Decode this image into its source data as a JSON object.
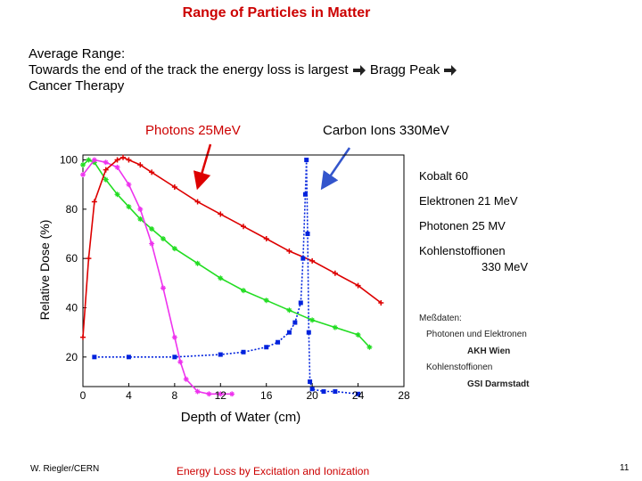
{
  "slide": {
    "title": "Range of Particles in Matter",
    "intro_line1": "Average Range:",
    "intro_line2a": "Towards the end of the track the energy loss is largest ",
    "intro_line2b": " Bragg Peak ",
    "intro_line3": "Cancer Therapy",
    "label_photons": "Photons 25MeV",
    "label_carbon": "Carbon Ions 330MeV",
    "footer_author": "W. Riegler/CERN",
    "footer_topic": "Energy Loss by Excitation and Ionization",
    "page_number": "11",
    "accent_color": "#cc0000"
  },
  "chart_data": {
    "type": "line",
    "ylabel": "Relative Dose (%)",
    "xlabel": "Depth of Water (cm)",
    "xlim": [
      0,
      28
    ],
    "ylim": [
      8,
      102
    ],
    "x_ticks": [
      "0",
      "4",
      "8",
      "12",
      "16",
      "20",
      "24",
      "28"
    ],
    "y_ticks": [
      "20",
      "40",
      "60",
      "80",
      "100"
    ],
    "x_tick_values": [
      0,
      4,
      8,
      12,
      16,
      20,
      24,
      28
    ],
    "y_tick_values": [
      20,
      40,
      60,
      80,
      100
    ],
    "legend_title": "",
    "series": [
      {
        "name": "Kobalt 60",
        "color": "#22dd22",
        "marker": "star",
        "x": [
          0,
          0.5,
          1,
          2,
          3,
          4,
          5,
          6,
          7,
          8,
          10,
          12,
          14,
          16,
          18,
          20,
          22,
          24,
          25
        ],
        "y": [
          98,
          100,
          99,
          92,
          86,
          81,
          76,
          72,
          68,
          64,
          58,
          52,
          47,
          43,
          39,
          35,
          32,
          29,
          24
        ]
      },
      {
        "name": "Elektronen 21 MeV",
        "color": "#ee33ee",
        "marker": "star",
        "x": [
          0,
          1,
          2,
          3,
          4,
          5,
          6,
          7,
          8,
          8.5,
          9,
          10,
          11,
          12,
          13
        ],
        "y": [
          94,
          100,
          99,
          97,
          90,
          80,
          66,
          48,
          28,
          18,
          11,
          6,
          5,
          5,
          5
        ]
      },
      {
        "name": "Photonen 25 MV",
        "color": "#dd0000",
        "marker": "plus",
        "x": [
          0,
          0.5,
          1,
          2,
          3,
          3.5,
          4,
          5,
          6,
          8,
          10,
          12,
          14,
          16,
          18,
          20,
          22,
          24,
          26
        ],
        "y": [
          28,
          60,
          83,
          96,
          100,
          101,
          100,
          98,
          95,
          89,
          83,
          78,
          73,
          68,
          63,
          59,
          54,
          49,
          42
        ]
      },
      {
        "name": "Kohlenstoffionen 330 MeV",
        "color": "#0022dd",
        "marker": "square",
        "x": [
          1,
          4,
          8,
          12,
          14,
          16,
          17,
          18,
          18.5,
          19,
          19.2,
          19.4,
          19.5,
          19.6,
          19.7,
          19.8,
          20,
          21,
          22,
          24
        ],
        "y": [
          20,
          20,
          20,
          21,
          22,
          24,
          26,
          30,
          34,
          42,
          60,
          86,
          100,
          70,
          30,
          10,
          7,
          6,
          6,
          5
        ]
      }
    ],
    "legend": [
      {
        "text": "Kobalt 60",
        "color": "#22cc22"
      },
      {
        "text": "Elektronen  21 MeV",
        "color": "#ee33ee"
      },
      {
        "text": "Photonen    25 MV",
        "color": "#dd0000"
      },
      {
        "text": "Kohlenstoffionen",
        "color": "#0022dd"
      },
      {
        "text": "330 MeV",
        "color": "#0022dd"
      }
    ],
    "measurements": {
      "heading": "Meßdaten:",
      "line1": "Photonen und Elektronen",
      "line2": "AKH Wien",
      "line3": "Kohlenstoffionen",
      "line4": "GSI Darmstadt"
    }
  }
}
